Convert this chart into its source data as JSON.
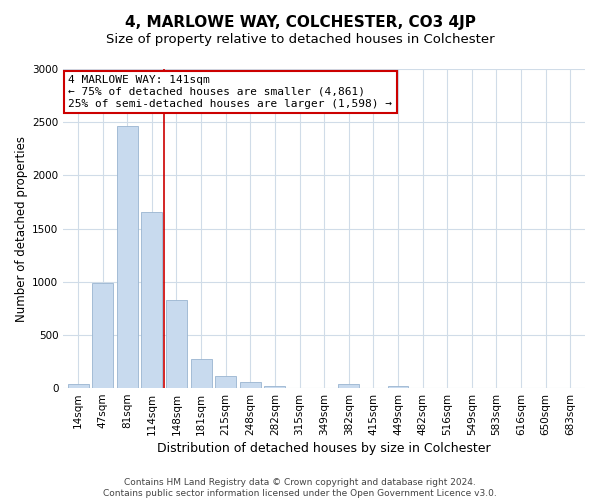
{
  "title": "4, MARLOWE WAY, COLCHESTER, CO3 4JP",
  "subtitle": "Size of property relative to detached houses in Colchester",
  "xlabel": "Distribution of detached houses by size in Colchester",
  "ylabel": "Number of detached properties",
  "bar_labels": [
    "14sqm",
    "47sqm",
    "81sqm",
    "114sqm",
    "148sqm",
    "181sqm",
    "215sqm",
    "248sqm",
    "282sqm",
    "315sqm",
    "349sqm",
    "382sqm",
    "415sqm",
    "449sqm",
    "482sqm",
    "516sqm",
    "549sqm",
    "583sqm",
    "616sqm",
    "650sqm",
    "683sqm"
  ],
  "bar_values": [
    40,
    990,
    2460,
    1660,
    830,
    270,
    110,
    55,
    15,
    5,
    2,
    35,
    0,
    15,
    0,
    0,
    0,
    0,
    0,
    0,
    0
  ],
  "bar_color": "#c8daee",
  "bar_edgecolor": "#9ab5d0",
  "vline_color": "#cc0000",
  "ylim": [
    0,
    3000
  ],
  "yticks": [
    0,
    500,
    1000,
    1500,
    2000,
    2500,
    3000
  ],
  "annotation_title": "4 MARLOWE WAY: 141sqm",
  "annotation_line1": "← 75% of detached houses are smaller (4,861)",
  "annotation_line2": "25% of semi-detached houses are larger (1,598) →",
  "annotation_box_facecolor": "#ffffff",
  "annotation_box_edgecolor": "#cc0000",
  "footer_line1": "Contains HM Land Registry data © Crown copyright and database right 2024.",
  "footer_line2": "Contains public sector information licensed under the Open Government Licence v3.0.",
  "figure_facecolor": "#ffffff",
  "plot_facecolor": "#ffffff",
  "grid_color": "#d0dce8",
  "title_fontsize": 11,
  "subtitle_fontsize": 9.5,
  "xlabel_fontsize": 9,
  "ylabel_fontsize": 8.5,
  "tick_fontsize": 7.5,
  "annotation_fontsize": 8,
  "footer_fontsize": 6.5,
  "vline_x_index": 3.5
}
